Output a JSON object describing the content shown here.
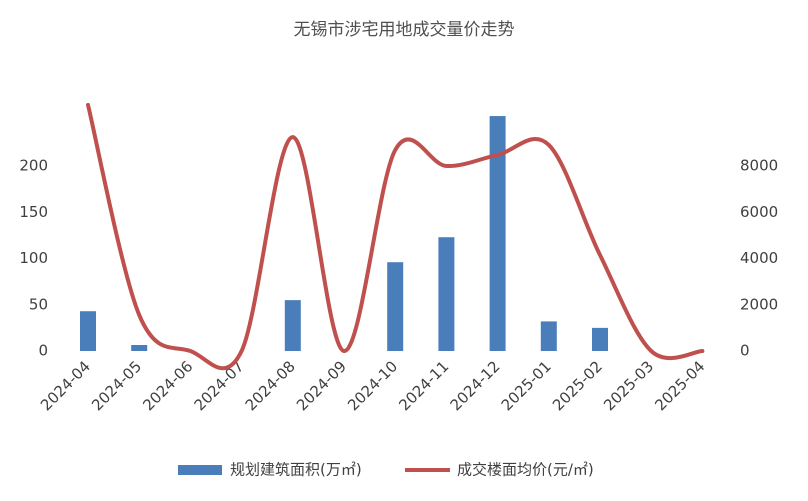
{
  "chart_data": {
    "type": "bar-line",
    "title": "无锡市涉宅用地成交量价走势",
    "categories": [
      "2024-04",
      "2024-05",
      "2024-06",
      "2024-07",
      "2024-08",
      "2024-09",
      "2024-10",
      "2024-11",
      "2024-12",
      "2025-01",
      "2025-02",
      "2025-03",
      "2025-04"
    ],
    "series": [
      {
        "name": "规划建筑面积(万㎡)",
        "type": "bar",
        "color": "#4a7ebb",
        "values": [
          43,
          6.5,
          0,
          0,
          55,
          0,
          96,
          123,
          254,
          32,
          25,
          0,
          0
        ]
      },
      {
        "name": "成交楼面均价(元/㎡)",
        "type": "line",
        "axis": "y2",
        "color": "#c0504d",
        "values": [
          10640,
          1560,
          0,
          0,
          9250,
          0,
          8690,
          8000,
          8480,
          8910,
          4150,
          0,
          0
        ]
      }
    ],
    "ylim": [
      0,
      270
    ],
    "yticks": [
      0,
      50,
      100,
      150,
      200
    ],
    "y2lim": [
      0,
      10800
    ],
    "y2ticks": [
      0,
      2000,
      4000,
      6000,
      8000
    ]
  }
}
